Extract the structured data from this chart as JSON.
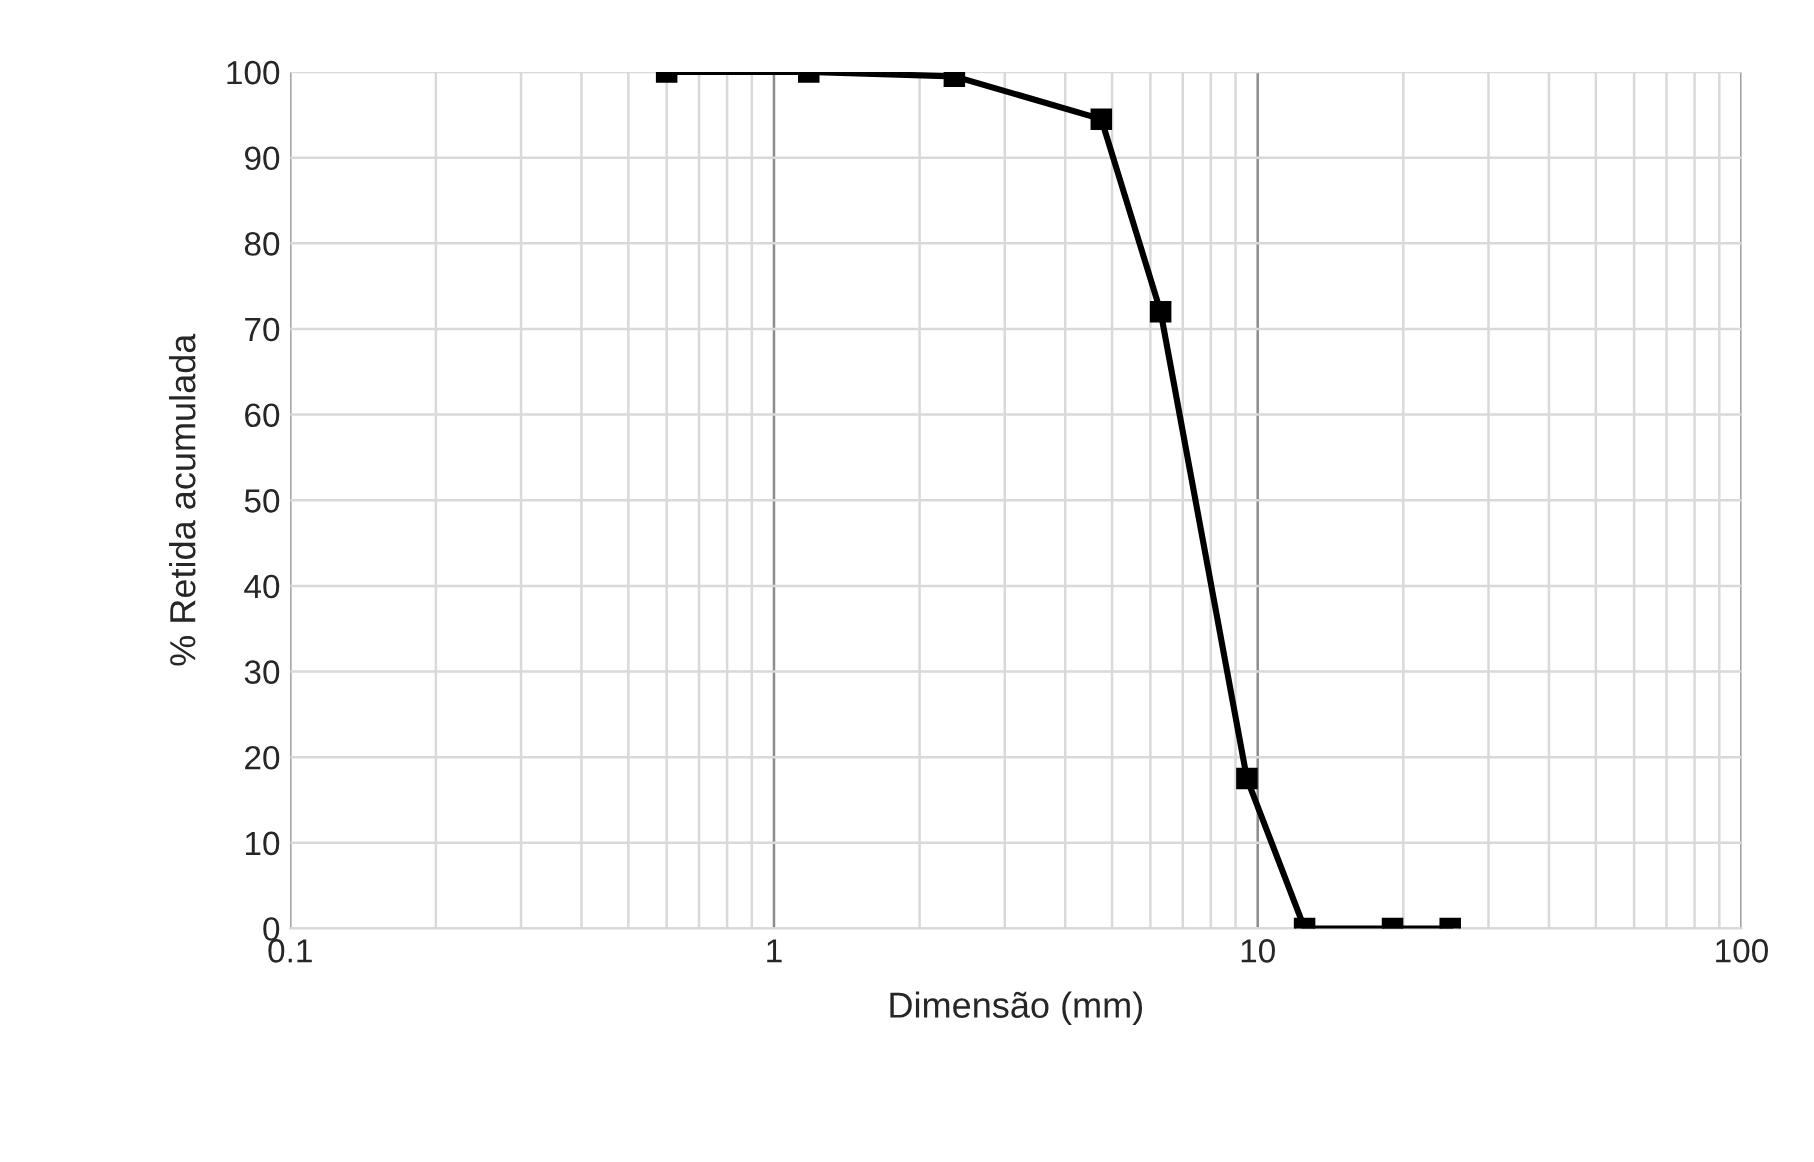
{
  "chart_data": {
    "type": "line",
    "xlabel": "Dimensão (mm)",
    "ylabel": "% Retida acumulada",
    "log": "x",
    "xlim": [
      0.1,
      100
    ],
    "xticks": [
      {
        "value": 0.1,
        "label": "0.1"
      },
      1,
      10,
      100
    ],
    "ylim": [
      0,
      100
    ],
    "yticks": [
      0,
      10,
      20,
      30,
      40,
      50,
      60,
      70,
      80,
      90,
      100
    ],
    "grid": true,
    "marker": "square",
    "line_style": "solid",
    "legend": false,
    "series": [
      {
        "color": "#000000",
        "x": [
          0.6,
          1.18,
          2.36,
          4.75,
          6.3,
          9.5,
          12.5,
          19,
          25
        ],
        "values": [
          100,
          100,
          99.5,
          94.5,
          72,
          17.5,
          0,
          0,
          0
        ]
      }
    ]
  }
}
